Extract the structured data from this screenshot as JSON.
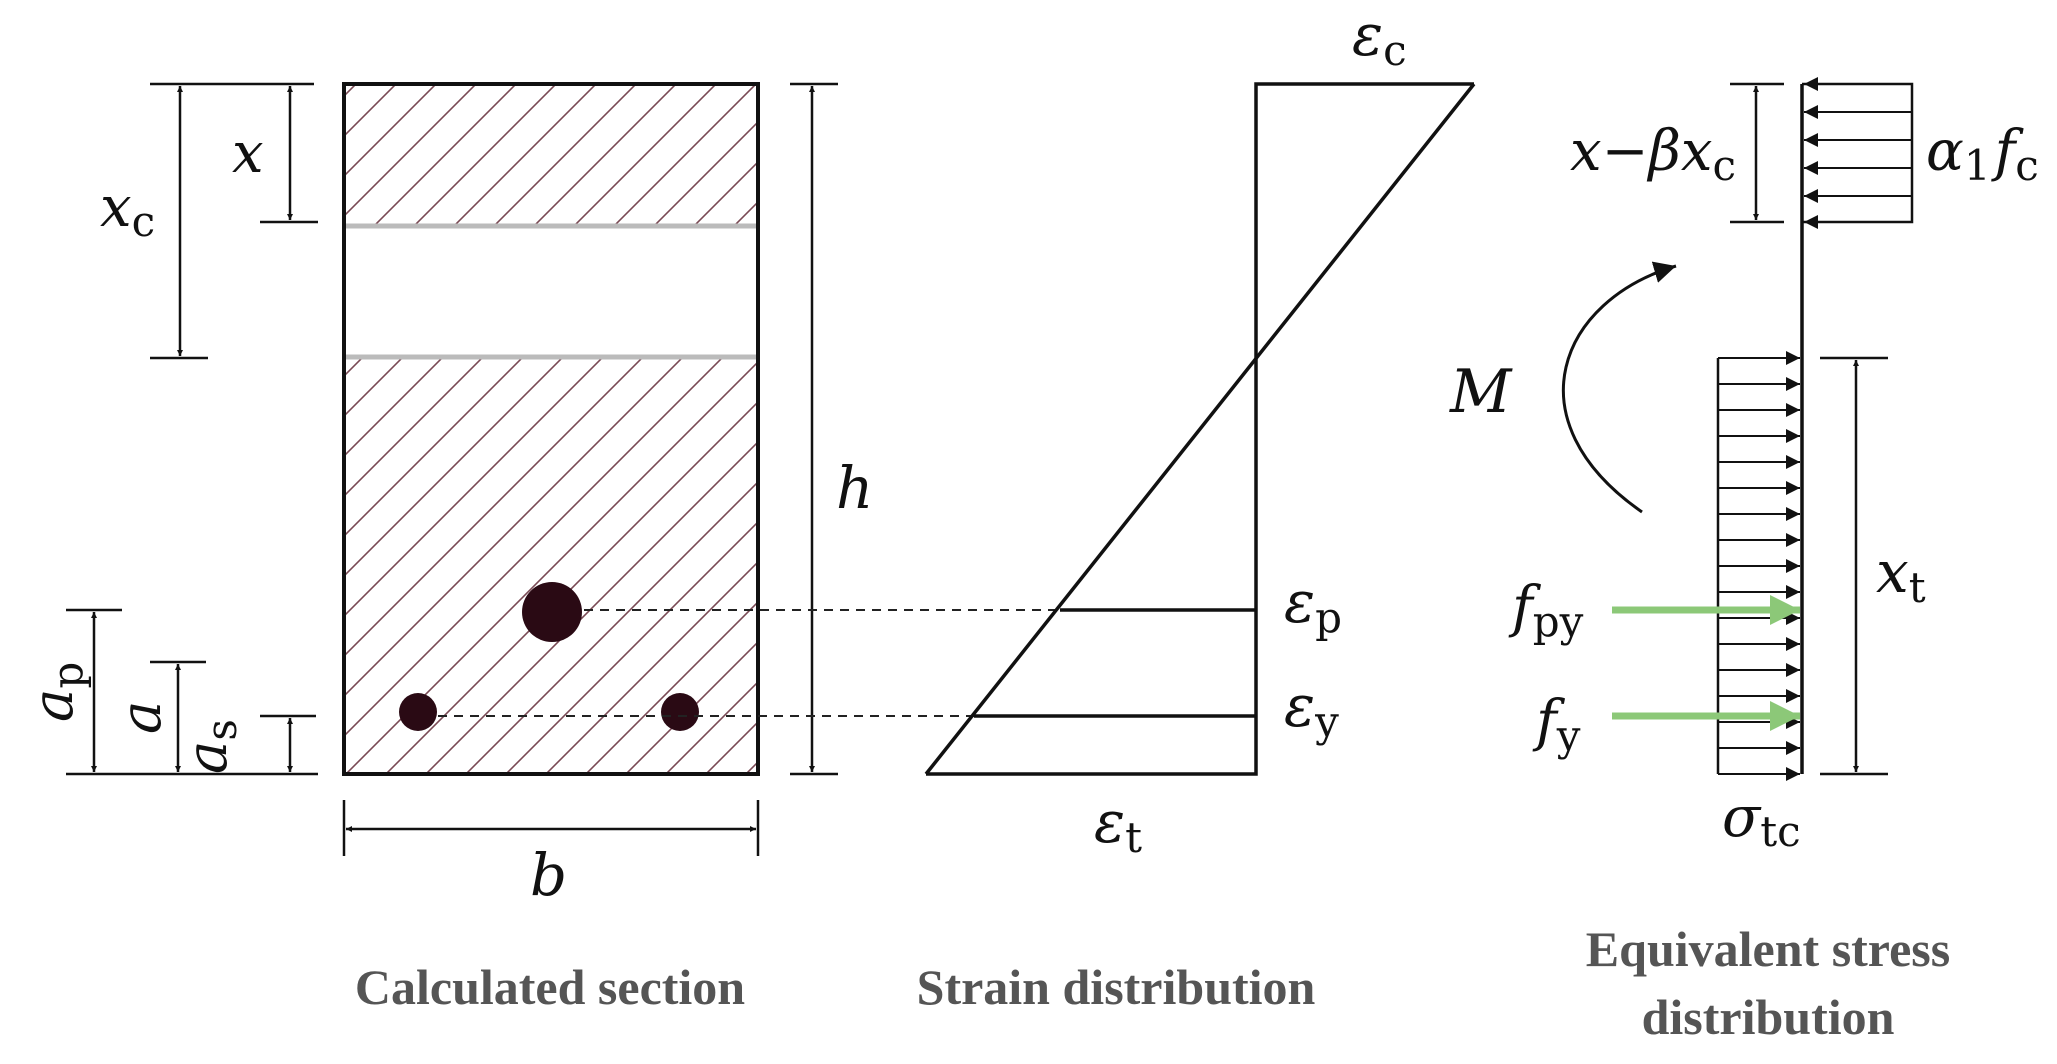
{
  "section": {
    "caption": "Calculated section",
    "labels": {
      "x_main": "x",
      "xc_main": "x",
      "xc_sub": "c",
      "h": "h",
      "b": "b",
      "ap_main": "a",
      "ap_sub": "p",
      "a": "a",
      "as_main": "a",
      "as_sub": "s"
    },
    "colors": {
      "hatch": "#7a4a55",
      "bar": "#2a0a14",
      "band": "#bbbbbb"
    }
  },
  "strain": {
    "caption": "Strain distribution",
    "labels": {
      "eps_c_main": "ε",
      "eps_c_sub": "c",
      "eps_p_main": "ε",
      "eps_p_sub": "p",
      "eps_y_main": "ε",
      "eps_y_sub": "y",
      "eps_t_main": "ε",
      "eps_t_sub": "t"
    }
  },
  "stress": {
    "caption_line1": "Equivalent stress",
    "caption_line2": "distribution",
    "labels": {
      "xbx_x": "x",
      "xbx_minus": "−",
      "xbx_beta": "β",
      "xbx_x2": "x",
      "xbx_sub": "c",
      "alpha_main": "α",
      "alpha_sub": "1",
      "fc_main": "f",
      "fc_sub": "c",
      "M": "M",
      "xt_main": "x",
      "xt_sub": "t",
      "fpy_main": "f",
      "fpy_sub": "py",
      "fy_main": "f",
      "fy_sub": "y",
      "sigma_main": "σ",
      "sigma_sub": "tc"
    },
    "colors": {
      "force_arrow": "#8cc878"
    }
  }
}
